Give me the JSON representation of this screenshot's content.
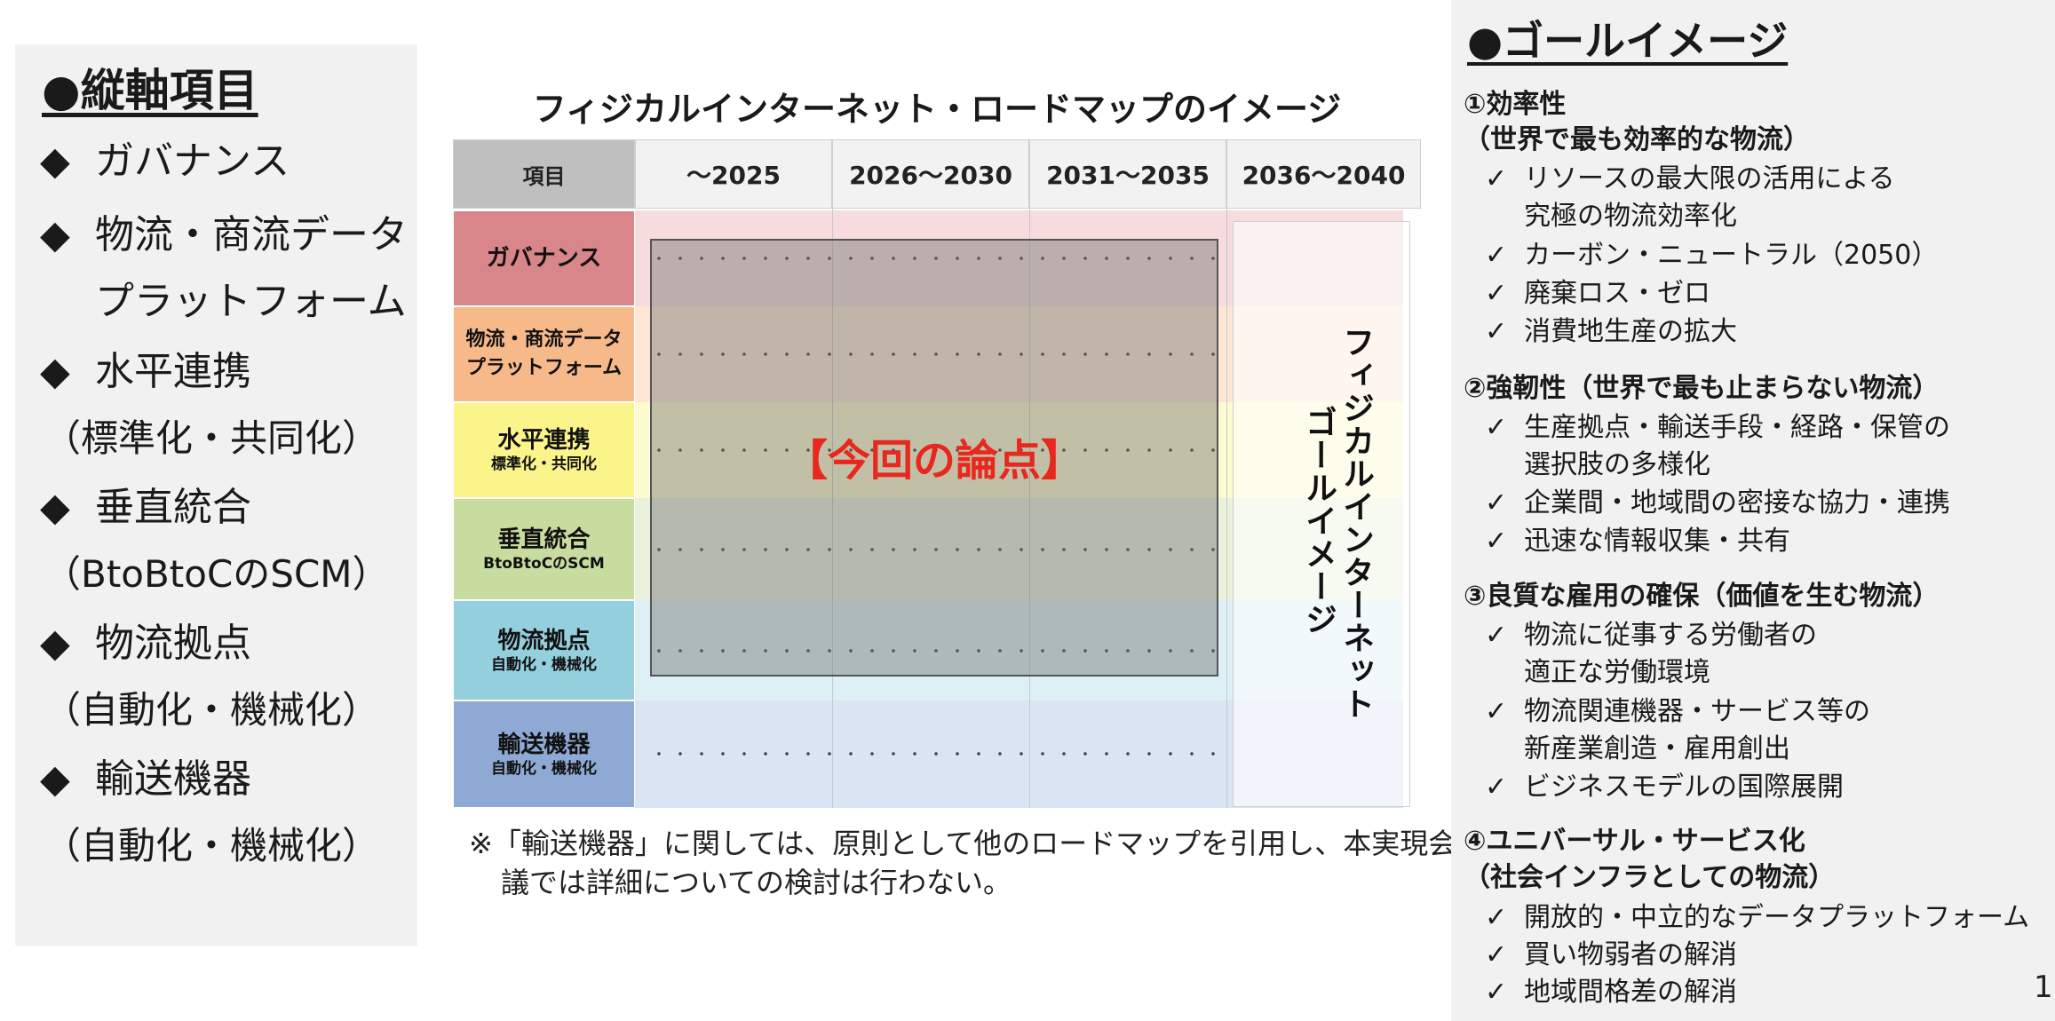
{
  "left_panel": {
    "title": "●縦軸項目",
    "bullet": "◆",
    "items": [
      {
        "label": "ガバナンス",
        "sub": ""
      },
      {
        "label": "物流・商流データ",
        "label2": "プラットフォーム",
        "sub": ""
      },
      {
        "label": "水平連携",
        "sub": "（標準化・共同化）"
      },
      {
        "label": "垂直統合",
        "sub": "（BtoBtoCのSCM）"
      },
      {
        "label": "物流拠点",
        "sub": "（自動化・機械化）"
      },
      {
        "label": "輸送機器",
        "sub": "（自動化・機械化）"
      }
    ]
  },
  "roadmap": {
    "title": "フィジカルインターネット・ロードマップのイメージ",
    "header": [
      "項目",
      "～2025",
      "2026～2030",
      "2031～2035",
      "2036～2040"
    ],
    "rows": [
      {
        "main": "ガバナンス",
        "sub": "",
        "color": "#d9868a",
        "band": "#f6dcdc"
      },
      {
        "main": "物流・商流データ",
        "main2": "プラットフォーム",
        "sub": "",
        "color": "#f8b98a",
        "band": "#fde7d4"
      },
      {
        "main": "水平連携",
        "sub": "標準化・共同化",
        "color": "#fbf48b",
        "band": "#fdfbd0"
      },
      {
        "main": "垂直統合",
        "sub": "BtoBtoCのSCM",
        "color": "#c9dca0",
        "band": "#ebf2dc"
      },
      {
        "main": "物流拠点",
        "sub": "自動化・機械化",
        "color": "#94cfdd",
        "band": "#ddf0f5"
      },
      {
        "main": "輸送機器",
        "sub": "自動化・機械化",
        "color": "#8eaad4",
        "band": "#dbe4f2"
      }
    ],
    "focus_label": "【今回の論点】",
    "goal_line1": "フィジカルインターネット",
    "goal_line2": "ゴールイメージ",
    "note_line1": "※「輸送機器」に関しては、原則として他のロードマップを引用し、本実現会",
    "note_line2": "議では詳細についての検討は行わない。"
  },
  "right_panel": {
    "title": "●ゴールイメージ",
    "check": "✓",
    "sections": [
      {
        "heading": [
          "①効率性",
          "（世界で最も効率的な物流）"
        ],
        "items": [
          [
            "リソースの最大限の活用による",
            "究極の物流効率化"
          ],
          [
            "カーボン・ニュートラル（2050）"
          ],
          [
            "廃棄ロス・ゼロ"
          ],
          [
            "消費地生産の拡大"
          ]
        ]
      },
      {
        "heading": [
          "②強靭性（世界で最も止まらない物流）"
        ],
        "items": [
          [
            "生産拠点・輸送手段・経路・保管の",
            "選択肢の多様化"
          ],
          [
            "企業間・地域間の密接な協力・連携"
          ],
          [
            "迅速な情報収集・共有"
          ]
        ]
      },
      {
        "heading": [
          "③良質な雇用の確保（価値を生む物流）"
        ],
        "items": [
          [
            "物流に従事する労働者の",
            "適正な労働環境"
          ],
          [
            "物流関連機器・サービス等の",
            "新産業創造・雇用創出"
          ],
          [
            "ビジネスモデルの国際展開"
          ]
        ]
      },
      {
        "heading": [
          "④ユニバーサル・サービス化",
          "（社会インフラとしての物流）"
        ],
        "items": [
          [
            "開放的・中立的なデータプラットフォーム"
          ],
          [
            "買い物弱者の解消"
          ],
          [
            "地域間格差の解消"
          ]
        ]
      }
    ]
  },
  "page_number": "1"
}
